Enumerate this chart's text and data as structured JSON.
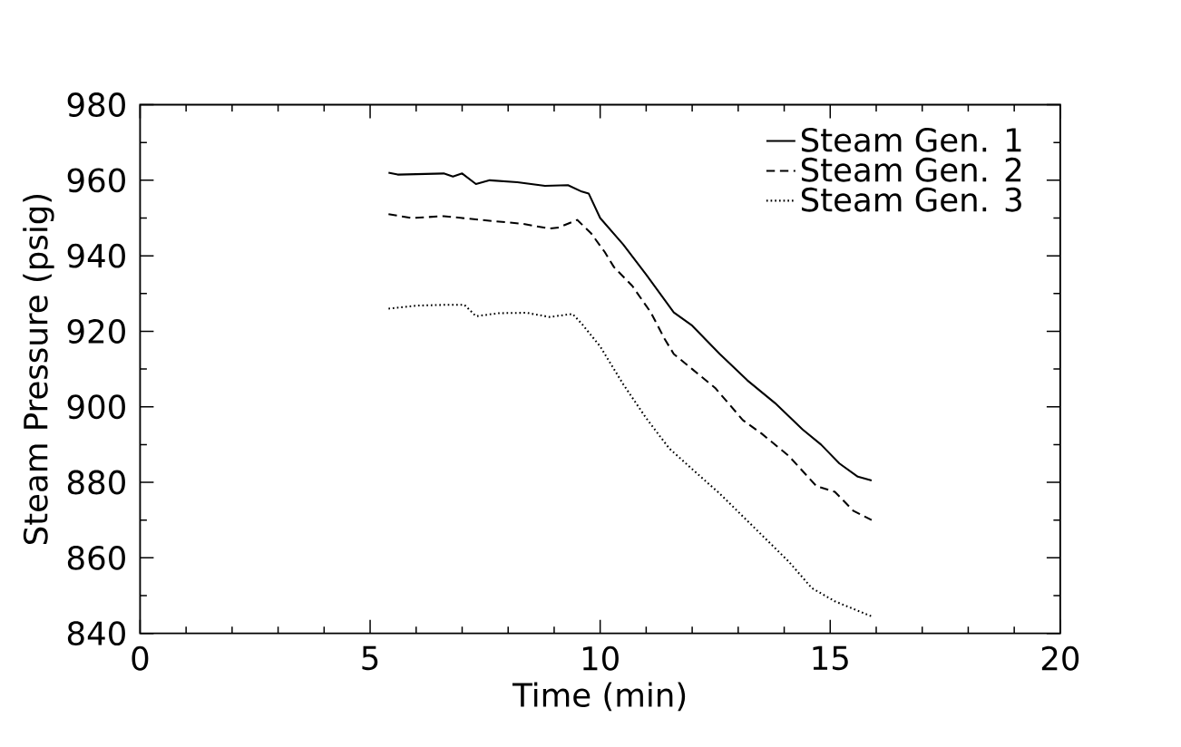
{
  "chart_data": {
    "type": "line",
    "xlabel": "Time (min)",
    "ylabel": "Steam Pressure (psig)",
    "xlim": [
      0,
      20
    ],
    "ylim": [
      840,
      980
    ],
    "xticks": [
      0,
      5,
      10,
      15,
      20
    ],
    "yticks": [
      840,
      860,
      880,
      900,
      920,
      940,
      960,
      980
    ],
    "grid": false,
    "legend": "top right",
    "marker": "none",
    "series": [
      {
        "name": "Steam Gen. 1",
        "color": "#000000",
        "line_style": "solid",
        "x": [
          5.4,
          5.6,
          6.6,
          6.8,
          7.0,
          7.3,
          7.6,
          8.2,
          8.8,
          9.3,
          9.6,
          9.75,
          10.0,
          10.5,
          11.0,
          11.6,
          12.0,
          12.6,
          13.2,
          13.8,
          14.4,
          14.8,
          15.2,
          15.6,
          15.9
        ],
        "values": [
          962,
          961.5,
          961.8,
          961,
          961.8,
          959,
          960,
          959.5,
          958.5,
          958.7,
          957,
          956.5,
          950,
          943,
          935,
          925,
          921.5,
          914,
          907,
          901,
          894,
          890,
          885,
          881.5,
          880.5
        ]
      },
      {
        "name": "Steam Gen. 2",
        "color": "#000000",
        "line_style": "dashed",
        "x": [
          5.4,
          5.9,
          6.6,
          7.4,
          8.3,
          8.9,
          9.1,
          9.5,
          9.8,
          10.1,
          10.3,
          10.7,
          11.1,
          11.4,
          11.6,
          12.0,
          12.5,
          13.1,
          13.5,
          14.1,
          14.7,
          15.1,
          15.5,
          15.9
        ],
        "values": [
          951,
          950,
          950.5,
          949.5,
          948.5,
          947.2,
          947.5,
          949.5,
          946,
          941,
          937,
          932,
          925,
          918,
          914,
          910,
          905,
          896.5,
          893,
          887,
          879,
          877.5,
          872.5,
          870
        ]
      },
      {
        "name": "Steam Gen. 3",
        "color": "#000000",
        "line_style": "dotted",
        "x": [
          5.4,
          6.0,
          6.6,
          7.05,
          7.3,
          7.8,
          8.4,
          8.9,
          9.4,
          9.6,
          10.0,
          10.5,
          11.0,
          11.5,
          12.0,
          12.6,
          13.1,
          13.6,
          14.1,
          14.6,
          15.1,
          15.5,
          15.9
        ],
        "values": [
          926,
          926.8,
          927,
          927,
          924,
          924.8,
          924.9,
          923.8,
          924.6,
          922,
          916,
          906,
          897,
          889,
          883.5,
          877,
          871,
          865,
          859,
          852,
          848.5,
          846.5,
          844.5
        ]
      }
    ]
  }
}
